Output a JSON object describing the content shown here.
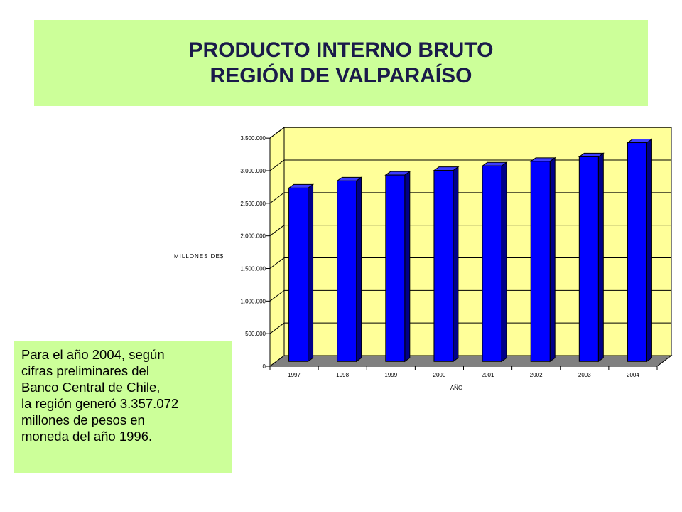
{
  "header": {
    "title_line1": "PRODUCTO INTERNO BRUTO",
    "title_line2": "REGIÓN DE VALPARAÍSO"
  },
  "note": {
    "lines": [
      "Para el año 2004, según",
      "cifras preliminares del",
      "Banco Central de Chile,",
      "la región generó 3.357.072",
      "millones de pesos en",
      "moneda del año 1996."
    ]
  },
  "chart_data": {
    "type": "bar",
    "categories": [
      "1997",
      "1998",
      "1999",
      "2000",
      "2001",
      "2002",
      "2003",
      "2004"
    ],
    "values": [
      2660000,
      2770000,
      2860000,
      2930000,
      3000000,
      3070000,
      3140000,
      3357072
    ],
    "xlabel": "AÑO",
    "ylabel": "MILLONES DE$",
    "ylim": [
      0,
      3500000
    ],
    "yticks": [
      0,
      500000,
      1000000,
      1500000,
      2000000,
      2500000,
      3000000,
      3500000
    ],
    "ytick_labels": [
      "0",
      "500.000",
      "1.000.000",
      "1.500.000",
      "2.000.000",
      "2.500.000",
      "3.000.000",
      "3.500.000"
    ],
    "grid": true,
    "three_d": true,
    "colors": {
      "bar_front": "#0000ff",
      "bar_side": "#000088",
      "bar_top": "#3c3cff",
      "wall": "#ffff99",
      "floor": "#808080"
    }
  }
}
